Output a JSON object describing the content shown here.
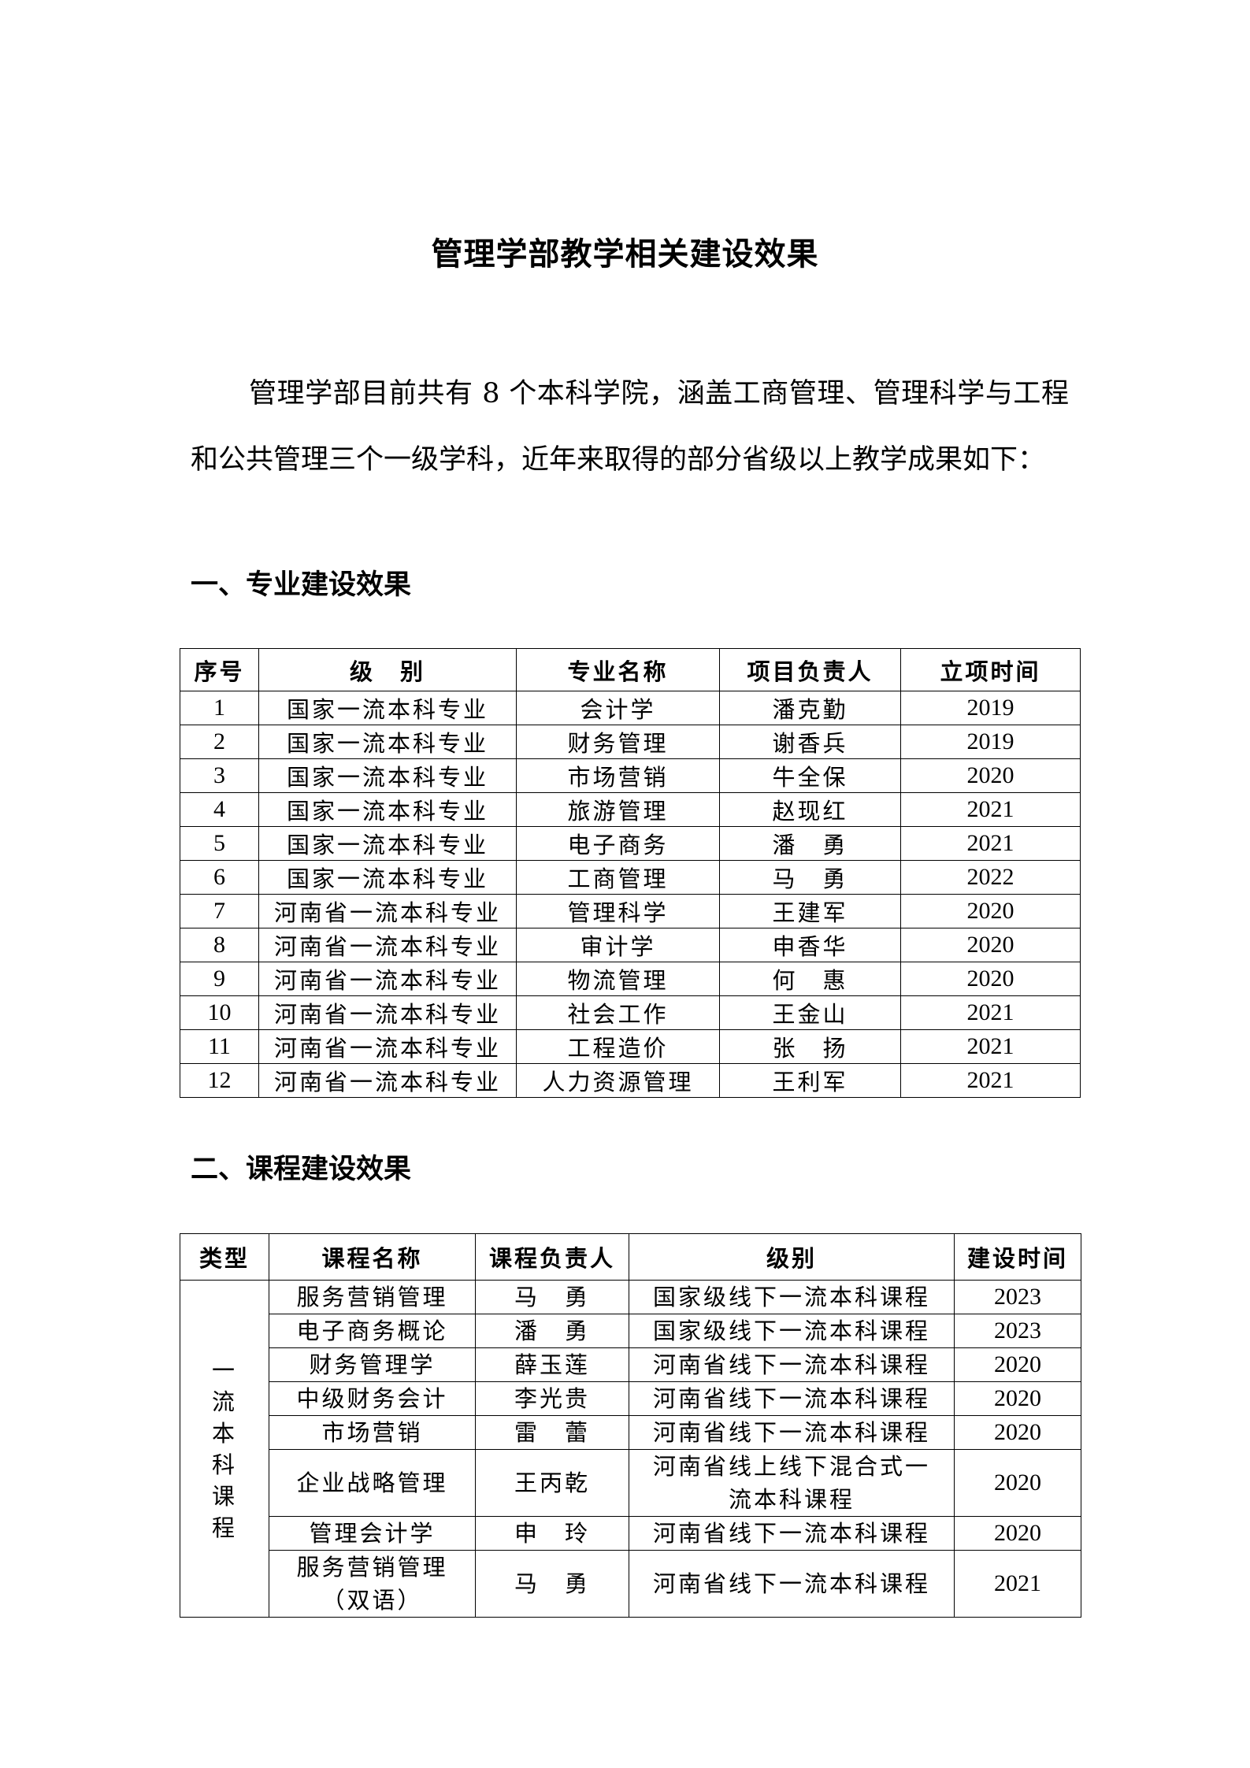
{
  "title": "管理学部教学相关建设效果",
  "intro": "管理学部目前共有 8 个本科学院，涵盖工商管理、管理科学与工程和公共管理三个一级学科，近年来取得的部分省级以上教学成果如下：",
  "section1": {
    "heading": "一、专业建设效果",
    "headers": [
      "序号",
      "级　别",
      "专业名称",
      "项目负责人",
      "立项时间"
    ],
    "rows": [
      [
        "1",
        "国家一流本科专业",
        "会计学",
        "潘克勤",
        "2019"
      ],
      [
        "2",
        "国家一流本科专业",
        "财务管理",
        "谢香兵",
        "2019"
      ],
      [
        "3",
        "国家一流本科专业",
        "市场营销",
        "牛全保",
        "2020"
      ],
      [
        "4",
        "国家一流本科专业",
        "旅游管理",
        "赵现红",
        "2021"
      ],
      [
        "5",
        "国家一流本科专业",
        "电子商务",
        "潘　勇",
        "2021"
      ],
      [
        "6",
        "国家一流本科专业",
        "工商管理",
        "马　勇",
        "2022"
      ],
      [
        "7",
        "河南省一流本科专业",
        "管理科学",
        "王建军",
        "2020"
      ],
      [
        "8",
        "河南省一流本科专业",
        "审计学",
        "申香华",
        "2020"
      ],
      [
        "9",
        "河南省一流本科专业",
        "物流管理",
        "何　惠",
        "2020"
      ],
      [
        "10",
        "河南省一流本科专业",
        "社会工作",
        "王金山",
        "2021"
      ],
      [
        "11",
        "河南省一流本科专业",
        "工程造价",
        "张　扬",
        "2021"
      ],
      [
        "12",
        "河南省一流本科专业",
        "人力资源管理",
        "王利军",
        "2021"
      ]
    ]
  },
  "section2": {
    "heading": "二、课程建设效果",
    "headers": [
      "类型",
      "课程名称",
      "课程负责人",
      "级别",
      "建设时间"
    ],
    "type_label": "一流本科课程",
    "rows": [
      [
        "服务营销管理",
        "马　勇",
        "国家级线下一流本科课程",
        "2023"
      ],
      [
        "电子商务概论",
        "潘　勇",
        "国家级线下一流本科课程",
        "2023"
      ],
      [
        "财务管理学",
        "薛玉莲",
        "河南省线下一流本科课程",
        "2020"
      ],
      [
        "中级财务会计",
        "李光贵",
        "河南省线下一流本科课程",
        "2020"
      ],
      [
        "市场营销",
        "雷　蕾",
        "河南省线下一流本科课程",
        "2020"
      ],
      [
        "企业战略管理",
        "王丙乾",
        "河南省线上线下混合式一流本科课程",
        "2020"
      ],
      [
        "管理会计学",
        "申　玲",
        "河南省线下一流本科课程",
        "2020"
      ],
      [
        "服务营销管理（双语）",
        "马　勇",
        "河南省线下一流本科课程",
        "2021"
      ]
    ]
  }
}
